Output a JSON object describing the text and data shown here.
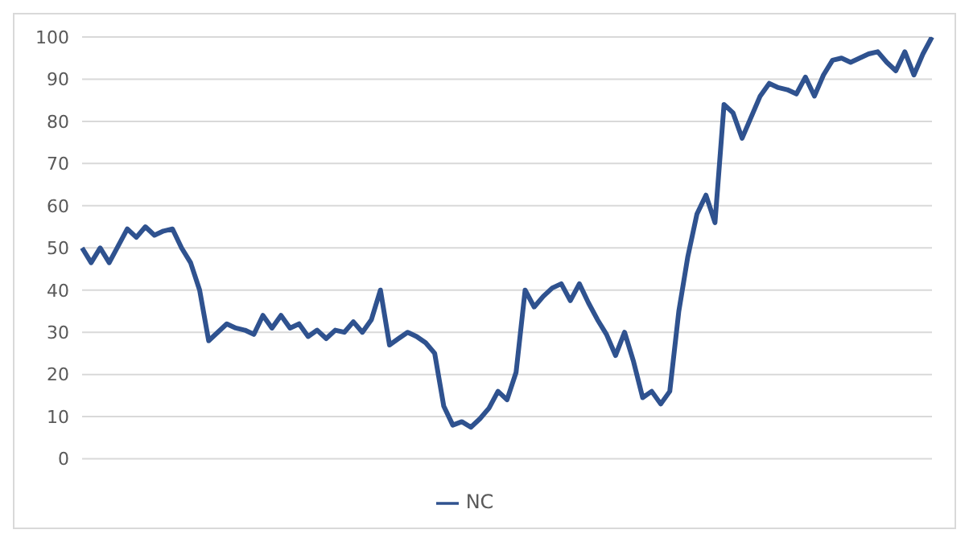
{
  "chart_data": {
    "type": "line",
    "categories": [
      null,
      null,
      null,
      null,
      null,
      null,
      null,
      null,
      null,
      null,
      null,
      null,
      null,
      null,
      null,
      null,
      null,
      null,
      null,
      null,
      null,
      null,
      null,
      null,
      null,
      null,
      null,
      null,
      null,
      null,
      null,
      null,
      null,
      null,
      null,
      null,
      null,
      null,
      null,
      null,
      null,
      null,
      null,
      null,
      null,
      null,
      null,
      null,
      null,
      null,
      null,
      null,
      null,
      null,
      null,
      null,
      null,
      null,
      null,
      null,
      null,
      null,
      null,
      null,
      null,
      null,
      null,
      null,
      null,
      null,
      null,
      null,
      null,
      null,
      null,
      null,
      null,
      null,
      null,
      null,
      null,
      null,
      null,
      null,
      null,
      null,
      null,
      null,
      null,
      null,
      null,
      null,
      null,
      null,
      null
    ],
    "series": [
      {
        "name": "NC",
        "color": "#2f528f",
        "values": [
          50,
          46.5,
          50,
          46.5,
          50.5,
          54.5,
          52.5,
          55,
          53,
          54,
          54.5,
          50,
          46.5,
          40,
          28,
          30,
          32,
          31,
          30.5,
          29.5,
          34,
          31,
          34,
          31,
          32,
          29,
          30.5,
          28.5,
          30.5,
          30,
          32.5,
          30,
          33,
          40,
          27,
          28.5,
          30,
          29,
          27.5,
          25,
          12.5,
          8,
          8.8,
          7.5,
          9.5,
          12,
          16,
          14,
          20.5,
          40,
          36,
          38.5,
          40.5,
          41.5,
          37.5,
          41.5,
          37,
          33,
          29.5,
          24.5,
          30,
          23,
          14.5,
          16,
          13,
          16,
          35,
          48,
          58,
          62.5,
          56,
          84,
          82,
          76,
          81,
          86,
          89,
          88,
          87.5,
          86.5,
          90.5,
          86,
          91,
          94.5,
          95,
          94,
          95,
          96,
          96.5,
          94,
          92,
          96.5,
          91,
          96,
          100
        ]
      }
    ],
    "ylim": [
      0,
      100
    ],
    "yticks": [
      0,
      10,
      20,
      30,
      40,
      50,
      60,
      70,
      80,
      90,
      100
    ],
    "grid": "y",
    "legend": "bottom",
    "marker": "none",
    "line_style": "solid",
    "tick_labels": "y"
  }
}
